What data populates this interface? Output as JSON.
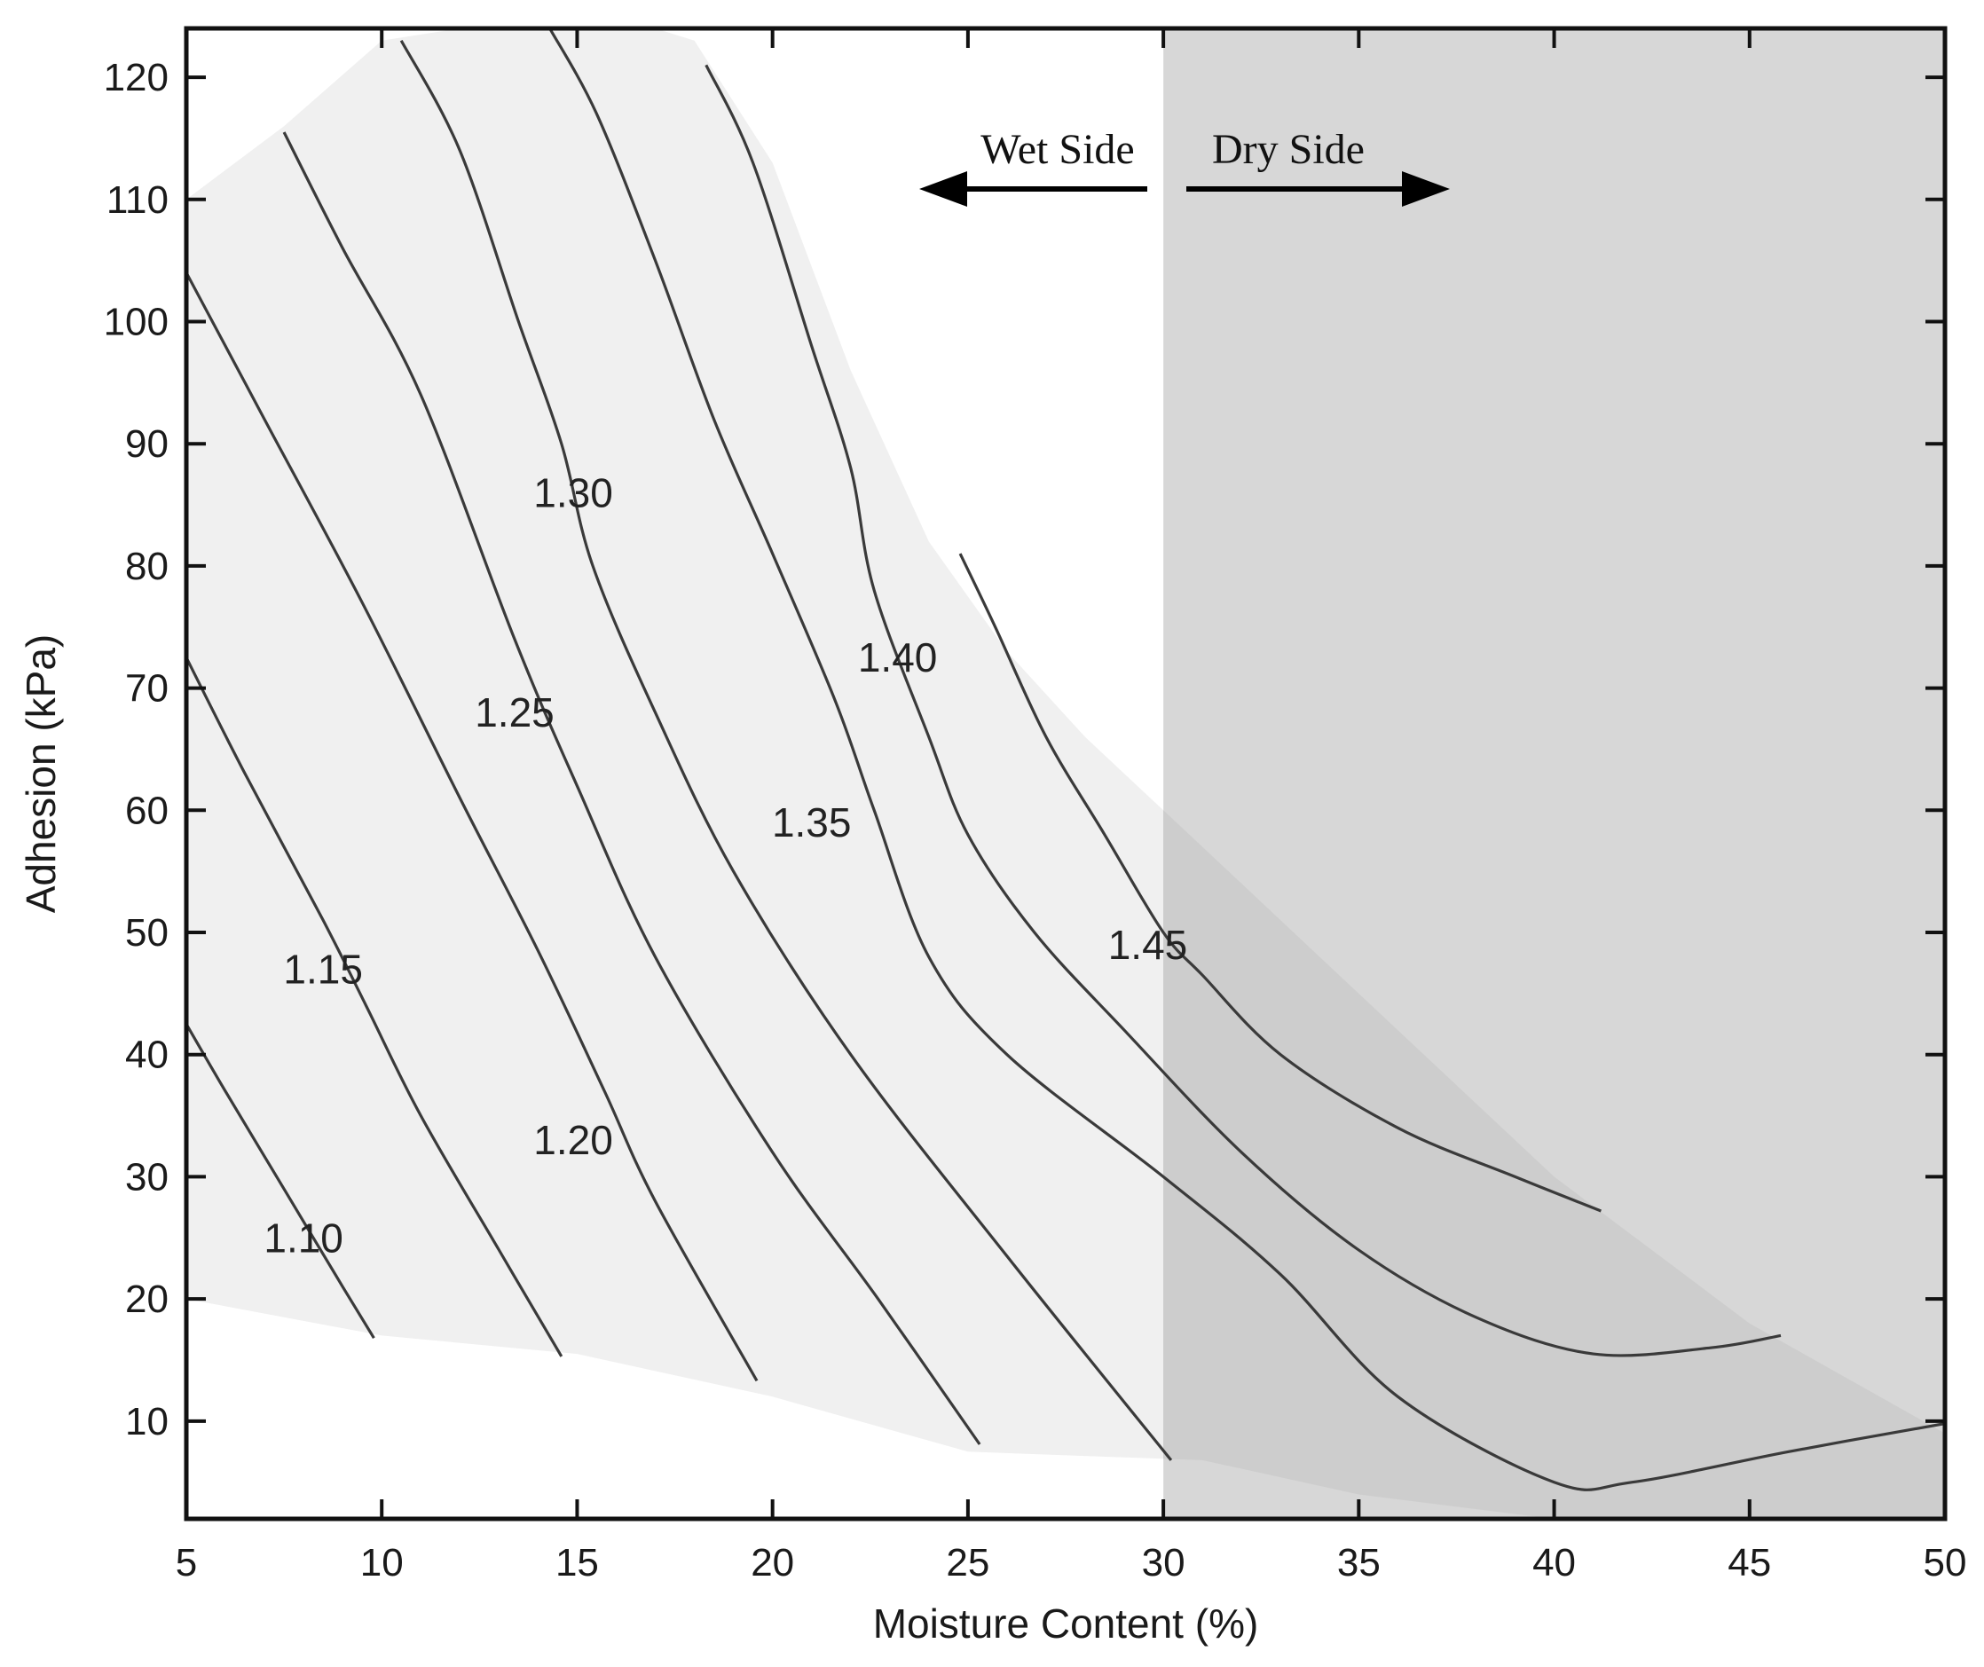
{
  "chart_data": {
    "type": "contour",
    "xlabel": "Moisture Content (%)",
    "ylabel": "Adhesion (kPa)",
    "xlim": [
      5,
      50
    ],
    "ylim": [
      2,
      124
    ],
    "xticks": [
      5,
      10,
      15,
      20,
      25,
      30,
      35,
      40,
      45,
      50
    ],
    "yticks": [
      10,
      20,
      30,
      40,
      50,
      60,
      70,
      80,
      90,
      100,
      110,
      120
    ],
    "grid": false,
    "colors": {
      "axes": "#111111",
      "contour_line": "#3a3a3a",
      "wet_region": "#f0f0f0",
      "dry_region": "#d4d4d4",
      "dry_region_overlap": "#cdcdcd"
    },
    "regions": [
      {
        "name": "Wet Side",
        "x_range": [
          5,
          30
        ],
        "arrow_direction": "left"
      },
      {
        "name": "Dry Side",
        "x_range": [
          30,
          50
        ],
        "arrow_direction": "right"
      }
    ],
    "divider_x": 30,
    "data_envelope": [
      [
        5,
        110
      ],
      [
        7.5,
        116
      ],
      [
        10,
        123
      ],
      [
        12,
        124
      ],
      [
        17,
        124
      ],
      [
        18,
        123
      ],
      [
        20,
        113
      ],
      [
        22,
        96
      ],
      [
        24,
        82
      ],
      [
        26,
        73
      ],
      [
        28,
        66
      ],
      [
        30,
        60
      ],
      [
        32,
        54
      ],
      [
        35,
        45
      ],
      [
        40,
        30
      ],
      [
        45,
        18
      ],
      [
        50,
        9
      ],
      [
        50,
        2
      ],
      [
        40,
        2
      ],
      [
        35,
        4
      ],
      [
        31,
        6.8
      ],
      [
        25,
        7.5
      ],
      [
        20,
        12
      ],
      [
        15,
        15.5
      ],
      [
        10,
        17
      ],
      [
        5,
        20
      ]
    ],
    "contours": [
      {
        "level": "1.10",
        "points": [
          [
            5,
            42.5
          ],
          [
            6,
            37
          ],
          [
            7.5,
            29
          ],
          [
            9,
            21
          ],
          [
            9.8,
            16.8
          ]
        ]
      },
      {
        "level": "1.15",
        "points": [
          [
            5,
            72.5
          ],
          [
            6.5,
            63
          ],
          [
            8.5,
            51
          ],
          [
            9.6,
            44
          ],
          [
            11,
            35
          ],
          [
            13,
            24
          ],
          [
            14.6,
            15.3
          ]
        ]
      },
      {
        "level": "1.20",
        "points": [
          [
            5,
            104
          ],
          [
            7,
            92
          ],
          [
            9.5,
            77
          ],
          [
            12,
            61
          ],
          [
            14,
            48.5
          ],
          [
            15.7,
            37
          ],
          [
            17,
            28
          ],
          [
            19.6,
            13.3
          ]
        ]
      },
      {
        "level": "1.25",
        "points": [
          [
            7.5,
            115.5
          ],
          [
            9,
            106
          ],
          [
            11,
            94
          ],
          [
            13.4,
            74
          ],
          [
            15,
            62
          ],
          [
            17,
            48
          ],
          [
            20,
            32
          ],
          [
            22.7,
            20
          ],
          [
            25.3,
            8.1
          ]
        ]
      },
      {
        "level": "1.30",
        "points": [
          [
            10.5,
            123
          ],
          [
            12,
            114
          ],
          [
            13.5,
            100
          ],
          [
            14.6,
            90
          ],
          [
            15.4,
            80
          ],
          [
            17,
            68
          ],
          [
            19,
            55
          ],
          [
            22,
            40
          ],
          [
            26,
            23.5
          ],
          [
            30.2,
            6.8
          ]
        ]
      },
      {
        "level": "1.35",
        "points": [
          [
            14.3,
            124
          ],
          [
            15.5,
            117
          ],
          [
            17,
            105
          ],
          [
            18.5,
            92
          ],
          [
            20,
            81
          ],
          [
            21.6,
            69
          ],
          [
            22.6,
            60
          ],
          [
            24,
            48
          ],
          [
            26,
            40
          ],
          [
            30,
            30
          ],
          [
            33,
            22
          ],
          [
            36,
            12
          ],
          [
            40,
            5
          ],
          [
            42,
            5
          ],
          [
            46,
            7.5
          ],
          [
            50,
            9.8
          ]
        ]
      },
      {
        "level": "1.40",
        "points": [
          [
            18.3,
            121
          ],
          [
            19.5,
            113
          ],
          [
            21,
            98
          ],
          [
            22,
            88
          ],
          [
            22.6,
            78
          ],
          [
            24,
            66
          ],
          [
            25,
            58
          ],
          [
            26.7,
            50
          ],
          [
            29,
            42
          ],
          [
            32,
            32
          ],
          [
            35,
            24
          ],
          [
            38,
            18.5
          ],
          [
            41,
            15.5
          ],
          [
            44,
            16
          ],
          [
            45.8,
            17
          ]
        ]
      },
      {
        "level": "1.45",
        "points": [
          [
            24.8,
            81
          ],
          [
            25.7,
            75
          ],
          [
            27,
            66
          ],
          [
            28.5,
            58
          ],
          [
            30,
            50
          ],
          [
            31,
            46.5
          ],
          [
            33,
            40
          ],
          [
            36,
            34
          ],
          [
            39,
            30
          ],
          [
            41.2,
            27.2
          ]
        ]
      }
    ],
    "contour_labels": [
      {
        "text": "1.10",
        "x": 8.0,
        "y": 25.0
      },
      {
        "text": "1.15",
        "x": 8.5,
        "y": 47.0
      },
      {
        "text": "1.20",
        "x": 14.9,
        "y": 33.0
      },
      {
        "text": "1.25",
        "x": 13.4,
        "y": 68.0
      },
      {
        "text": "1.30",
        "x": 14.9,
        "y": 86.0
      },
      {
        "text": "1.35",
        "x": 21.0,
        "y": 59.0
      },
      {
        "text": "1.40",
        "x": 23.2,
        "y": 72.5
      },
      {
        "text": "1.45",
        "x": 29.6,
        "y": 49.0
      }
    ]
  }
}
